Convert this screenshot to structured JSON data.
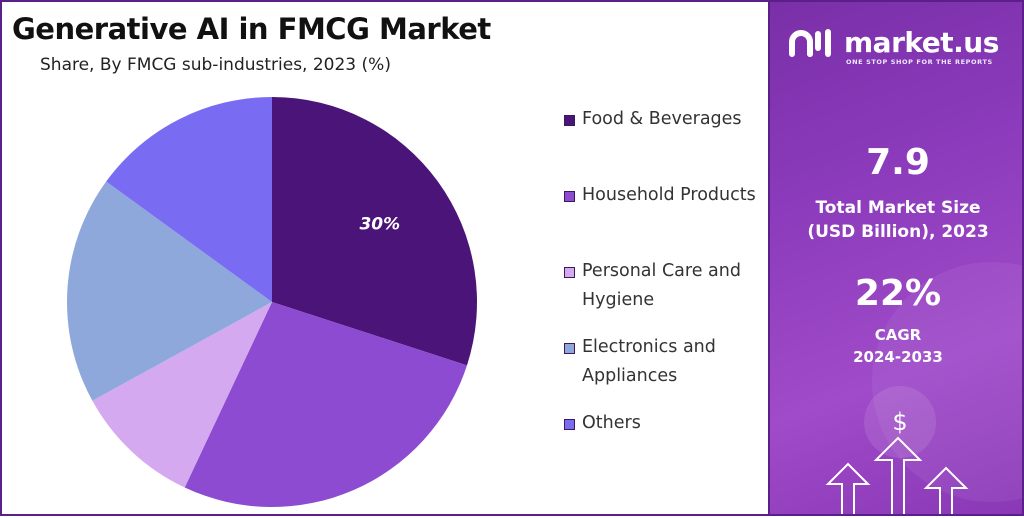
{
  "header": {
    "title": "Generative AI in FMCG Market",
    "subtitle": "Share, By FMCG sub-industries, 2023 (%)"
  },
  "chart_data": {
    "type": "pie",
    "title": "Generative AI in FMCG Market",
    "subtitle": "Share, By FMCG sub-industries, 2023 (%)",
    "slices": [
      {
        "label": "Food & Beverages",
        "value": 30,
        "color": "#4b1478",
        "data_label": "30%"
      },
      {
        "label": "Household Products",
        "value": 27,
        "color": "#8c4bd1",
        "data_label": ""
      },
      {
        "label": "Personal Care and Hygiene",
        "value": 10,
        "color": "#d4a9f0",
        "data_label": ""
      },
      {
        "label": "Electronics and Appliances",
        "value": 18,
        "color": "#8fa8dc",
        "data_label": ""
      },
      {
        "label": "Others",
        "value": 15,
        "color": "#7a6cf2",
        "data_label": ""
      }
    ],
    "start_angle_deg": 0,
    "direction": "clockwise",
    "legend_position": "right"
  },
  "legend": {
    "items": [
      {
        "label": "Food & Beverages",
        "color": "#4b1478"
      },
      {
        "label": "Household Products",
        "color": "#8c4bd1"
      },
      {
        "label": "Personal Care and Hygiene",
        "color": "#d4a9f0"
      },
      {
        "label": "Electronics and Appliances",
        "color": "#8fa8dc"
      },
      {
        "label": "Others",
        "color": "#7a6cf2"
      }
    ]
  },
  "sidebar": {
    "brand": "market.us",
    "tagline": "ONE STOP SHOP FOR THE REPORTS",
    "market_size_value": "7.9",
    "market_size_label_line1": "Total Market Size",
    "market_size_label_line2": "(USD Billion), 2023",
    "cagr_value": "22%",
    "cagr_label_line1": "CAGR",
    "cagr_label_line2": "2024-2033",
    "currency_symbol": "$",
    "accent_color": "#8b3bbb"
  }
}
